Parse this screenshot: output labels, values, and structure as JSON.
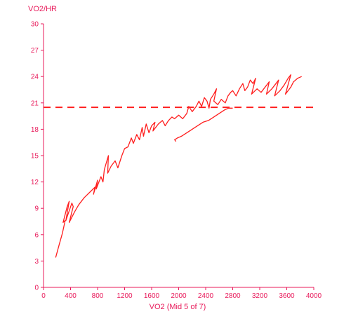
{
  "chart_data": {
    "type": "line",
    "ylabel": "VO2/HR",
    "xlabel": "VO2 (Mid 5 of 7)",
    "xlim": [
      0,
      4000
    ],
    "ylim": [
      0,
      30
    ],
    "x_ticks": [
      "0",
      "400",
      "800",
      "1200",
      "1600",
      "2000",
      "2400",
      "2800",
      "3200",
      "3600",
      "4000"
    ],
    "y_ticks": [
      "0",
      "3",
      "6",
      "9",
      "12",
      "15",
      "18",
      "21",
      "24",
      "27",
      "30"
    ],
    "grid": false,
    "reference_line": {
      "y": 20.5,
      "style": "dashed"
    },
    "color": "#ff1e1e",
    "axis_color": "#e8195a",
    "series": [
      {
        "points": [
          [
            180,
            3.4
          ],
          [
            230,
            4.8
          ],
          [
            280,
            6.2
          ],
          [
            320,
            7.6
          ],
          [
            290,
            7.4
          ],
          [
            350,
            9.2
          ],
          [
            380,
            9.8
          ],
          [
            330,
            7.6
          ],
          [
            420,
            9.6
          ],
          [
            440,
            9.2
          ],
          [
            380,
            7.4
          ],
          [
            460,
            8.6
          ],
          [
            520,
            9.4
          ],
          [
            600,
            10.2
          ],
          [
            680,
            10.8
          ],
          [
            760,
            11.4
          ],
          [
            740,
            10.6
          ],
          [
            800,
            12.2
          ],
          [
            780,
            11.2
          ],
          [
            850,
            12.6
          ],
          [
            880,
            12.0
          ],
          [
            900,
            13.4
          ],
          [
            930,
            14.2
          ],
          [
            960,
            15.0
          ],
          [
            950,
            13.0
          ],
          [
            1000,
            13.8
          ],
          [
            1060,
            14.4
          ],
          [
            1100,
            13.6
          ],
          [
            1160,
            15.0
          ],
          [
            1200,
            15.8
          ],
          [
            1250,
            16.0
          ],
          [
            1300,
            17.0
          ],
          [
            1330,
            16.4
          ],
          [
            1380,
            17.4
          ],
          [
            1420,
            16.8
          ],
          [
            1460,
            18.2
          ],
          [
            1480,
            17.2
          ],
          [
            1520,
            18.6
          ],
          [
            1560,
            17.6
          ],
          [
            1600,
            18.4
          ],
          [
            1650,
            18.8
          ],
          [
            1620,
            17.8
          ],
          [
            1700,
            18.6
          ],
          [
            1760,
            19.0
          ],
          [
            1800,
            18.4
          ],
          [
            1850,
            19.0
          ],
          [
            1900,
            19.4
          ],
          [
            1940,
            19.2
          ],
          [
            2000,
            19.6
          ],
          [
            2060,
            19.2
          ],
          [
            2120,
            19.8
          ],
          [
            2150,
            20.6
          ],
          [
            2200,
            20.0
          ],
          [
            2260,
            20.6
          ],
          [
            2300,
            21.2
          ],
          [
            2340,
            20.6
          ],
          [
            2380,
            21.6
          ],
          [
            2420,
            21.2
          ],
          [
            2450,
            20.4
          ],
          [
            2470,
            21.4
          ],
          [
            2520,
            22.0
          ],
          [
            2560,
            22.6
          ],
          [
            2520,
            21.2
          ],
          [
            2580,
            20.8
          ],
          [
            2630,
            21.4
          ],
          [
            2690,
            21.0
          ],
          [
            2730,
            21.8
          ],
          [
            2770,
            22.2
          ],
          [
            2800,
            22.4
          ],
          [
            2850,
            21.8
          ],
          [
            2900,
            22.6
          ],
          [
            2950,
            23.2
          ],
          [
            2980,
            22.4
          ],
          [
            3020,
            22.8
          ],
          [
            3060,
            23.6
          ],
          [
            3100,
            23.2
          ],
          [
            3140,
            23.8
          ],
          [
            3080,
            22.0
          ],
          [
            3160,
            22.6
          ],
          [
            3220,
            22.2
          ],
          [
            3280,
            22.8
          ],
          [
            3340,
            23.4
          ],
          [
            3300,
            22.0
          ],
          [
            3380,
            22.6
          ],
          [
            3440,
            23.2
          ],
          [
            3480,
            23.6
          ],
          [
            3420,
            21.8
          ],
          [
            3500,
            22.4
          ],
          [
            3560,
            23.0
          ],
          [
            3620,
            23.8
          ],
          [
            3660,
            24.2
          ],
          [
            3580,
            22.0
          ],
          [
            3660,
            22.8
          ],
          [
            3700,
            23.4
          ],
          [
            3760,
            23.8
          ],
          [
            3820,
            24.0
          ]
        ]
      },
      {
        "points": [
          [
            1960,
            16.6
          ],
          [
            1940,
            16.8
          ],
          [
            1980,
            17.0
          ],
          [
            2040,
            17.2
          ],
          [
            2120,
            17.6
          ],
          [
            2200,
            18.0
          ],
          [
            2280,
            18.4
          ],
          [
            2360,
            18.8
          ],
          [
            2440,
            19.0
          ],
          [
            2520,
            19.4
          ],
          [
            2600,
            19.8
          ],
          [
            2680,
            20.2
          ],
          [
            2740,
            20.4
          ],
          [
            2800,
            20.4
          ]
        ]
      }
    ]
  }
}
